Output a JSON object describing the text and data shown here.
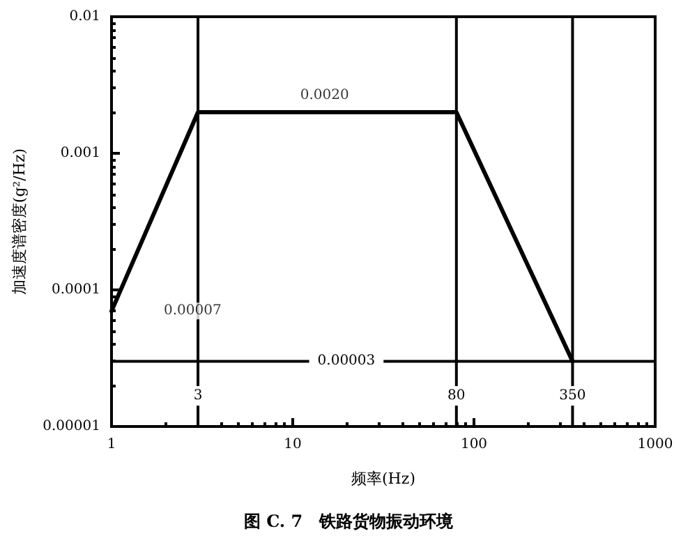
{
  "chart_data": {
    "type": "line",
    "title": "图 C. 7　铁路货物振动环境",
    "xlabel": "频率(Hz)",
    "ylabel": "加速度谱密度(g²/Hz)",
    "x": [
      1,
      3,
      80,
      350
    ],
    "series": [
      {
        "color": "#000000",
        "values": [
          7e-05,
          0.002,
          0.002,
          3e-05
        ]
      }
    ],
    "log": "xy",
    "xlim": [
      1,
      1000
    ],
    "ylim": [
      1e-05,
      0.01
    ],
    "xticks": [
      1,
      10,
      100,
      1000
    ],
    "yticks": [
      {
        "value": 1e-05,
        "label": "0.00001"
      },
      0.0001,
      0.001,
      0.01
    ],
    "marker": "none",
    "line_style": "solid",
    "grid": false,
    "ref_lines": [
      {
        "axis": "x",
        "value": 3,
        "label": "3"
      },
      {
        "axis": "x",
        "value": 80,
        "label": "80"
      },
      {
        "axis": "x",
        "value": 350,
        "label": "350"
      },
      {
        "axis": "y",
        "value": 3e-05,
        "label": "0.00003"
      }
    ],
    "annotations": [
      {
        "text": "0.0020",
        "x": 15,
        "y": 0.002
      },
      {
        "text": "0.00007",
        "x": 2.8,
        "y": 7e-05
      }
    ]
  }
}
